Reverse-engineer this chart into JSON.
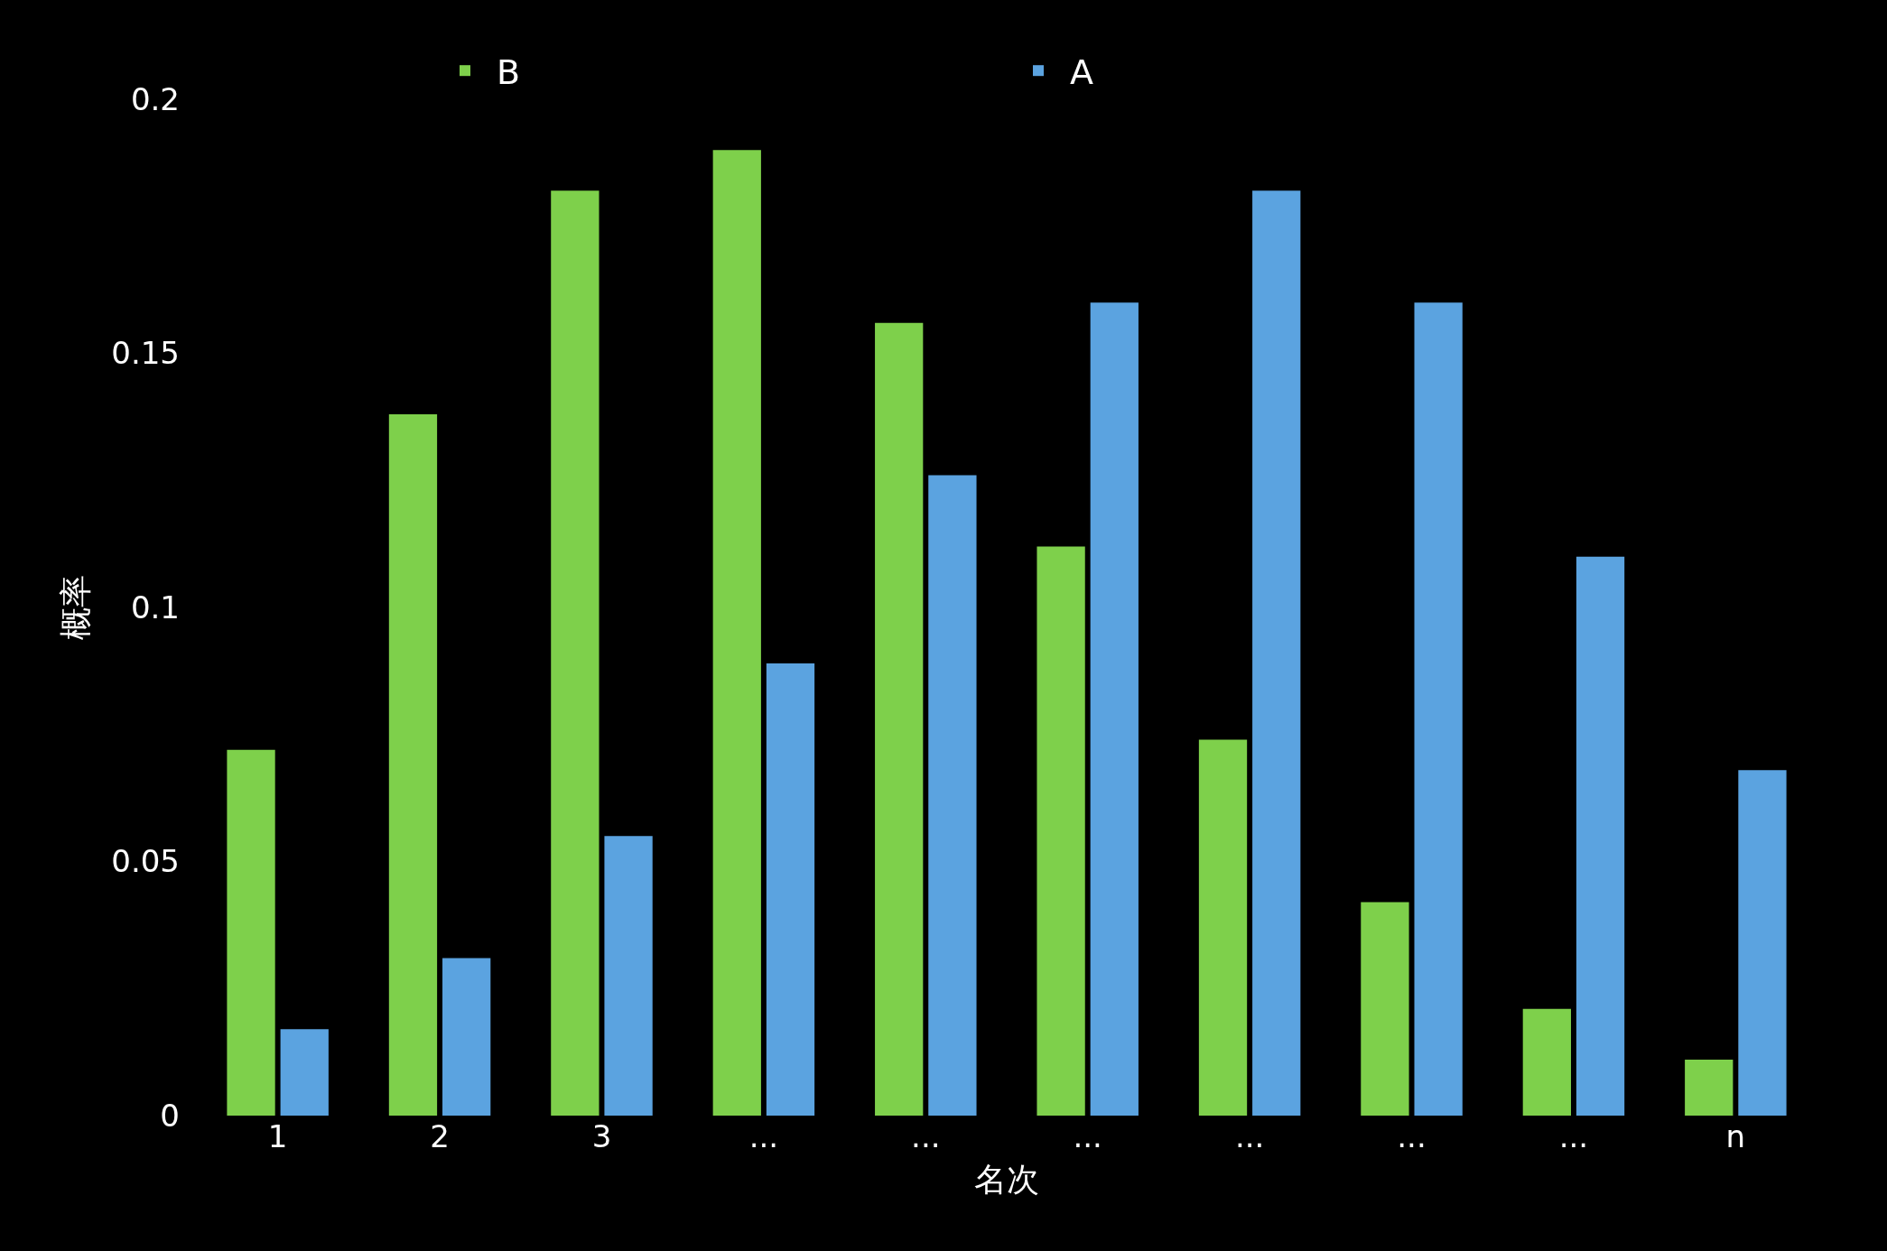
{
  "chart_data": {
    "type": "bar",
    "xlabel": "名次",
    "ylabel": "概率",
    "categories": [
      "1",
      "2",
      "3",
      "...",
      "...",
      "...",
      "...",
      "...",
      "...",
      "n"
    ],
    "series": [
      {
        "name": "B",
        "color": "#7ed04b",
        "values": [
          0.072,
          0.138,
          0.182,
          0.19,
          0.156,
          0.112,
          0.074,
          0.042,
          0.021,
          0.011
        ]
      },
      {
        "name": "A",
        "color": "#5ba3e0",
        "values": [
          0.017,
          0.031,
          0.055,
          0.089,
          0.126,
          0.16,
          0.182,
          0.16,
          0.11,
          0.068
        ]
      }
    ],
    "ylim": [
      0,
      0.2
    ],
    "yticks": [
      0,
      0.05,
      0.1,
      0.15,
      0.2
    ],
    "grid": false,
    "legend": "top"
  }
}
